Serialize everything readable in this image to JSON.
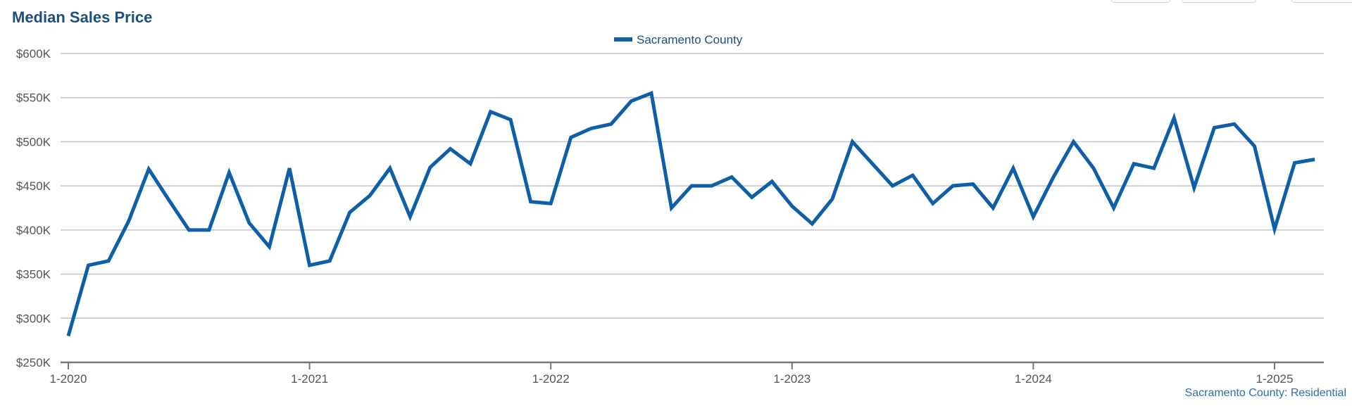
{
  "header": {
    "title": "Median Sales Price"
  },
  "footer": {
    "caption": "Sacramento County: Residential"
  },
  "colors": {
    "series": "#0e5ea8",
    "title": "#1d4f7c",
    "grid": "#c4c4c4",
    "axis_text": "#555555",
    "caption": "#2a6fb0"
  },
  "chart_data": {
    "type": "line",
    "title": "Median Sales Price",
    "xlabel": "",
    "ylabel": "",
    "ylim": [
      250000,
      600000
    ],
    "y_ticks": [
      250000,
      300000,
      350000,
      400000,
      450000,
      500000,
      550000,
      600000
    ],
    "y_tick_labels": [
      "$250K",
      "$300K",
      "$350K",
      "$400K",
      "$450K",
      "$500K",
      "$550K",
      "$600K"
    ],
    "x_tick_labels": [
      "1-2020",
      "1-2021",
      "1-2022",
      "1-2023",
      "1-2024",
      "1-2025"
    ],
    "x_tick_months": [
      0,
      12,
      24,
      36,
      48,
      60
    ],
    "grid": true,
    "legend_position": "top-center",
    "series": [
      {
        "name": "Sacramento County",
        "color": "#0e5ea8",
        "x": [
          "1-2020",
          "2-2020",
          "3-2020",
          "4-2020",
          "5-2020",
          "6-2020",
          "7-2020",
          "8-2020",
          "9-2020",
          "10-2020",
          "11-2020",
          "12-2020",
          "1-2021",
          "2-2021",
          "3-2021",
          "4-2021",
          "5-2021",
          "6-2021",
          "7-2021",
          "8-2021",
          "9-2021",
          "10-2021",
          "11-2021",
          "12-2021",
          "1-2022",
          "2-2022",
          "3-2022",
          "4-2022",
          "5-2022",
          "6-2022",
          "7-2022",
          "8-2022",
          "9-2022",
          "10-2022",
          "11-2022",
          "12-2022",
          "1-2023",
          "2-2023",
          "3-2023",
          "4-2023",
          "5-2023",
          "6-2023",
          "7-2023",
          "8-2023",
          "9-2023",
          "10-2023",
          "11-2023",
          "12-2023",
          "1-2024",
          "2-2024",
          "3-2024",
          "4-2024",
          "5-2024",
          "6-2024",
          "7-2024",
          "8-2024",
          "9-2024",
          "10-2024",
          "11-2024",
          "12-2024",
          "1-2025",
          "2-2025",
          "3-2025"
        ],
        "values": [
          280000,
          360000,
          365000,
          410000,
          469000,
          434000,
          400000,
          400000,
          465000,
          408000,
          381000,
          470000,
          360000,
          365000,
          420000,
          439000,
          470000,
          415000,
          471000,
          492000,
          475000,
          534000,
          525000,
          432000,
          430000,
          505000,
          515000,
          520000,
          546000,
          555000,
          425000,
          450000,
          450000,
          460000,
          437000,
          455000,
          427000,
          407000,
          435000,
          500000,
          475000,
          450000,
          462000,
          430000,
          450000,
          452000,
          425000,
          470000,
          415000,
          460000,
          500000,
          470000,
          425000,
          475000,
          470000,
          527000,
          448000,
          516000,
          520000,
          495000,
          401000,
          476000,
          480000
        ]
      }
    ]
  }
}
